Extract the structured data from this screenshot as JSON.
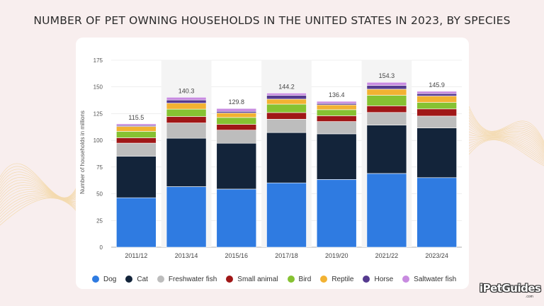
{
  "page": {
    "title": "NUMBER OF PET OWNING HOUSEHOLDS IN THE UNITED STATES IN 2023, BY SPECIES",
    "brand": "iPetGuides",
    "brand_sub": ".com"
  },
  "colors": {
    "Dog": "#2f7be1",
    "Cat": "#13243a",
    "Freshwater fish": "#bdbdbd",
    "Small animal": "#a01717",
    "Bird": "#86c232",
    "Reptile": "#f2b232",
    "Horse": "#553a8f",
    "Saltwater fish": "#c88be0"
  },
  "chart_data": {
    "type": "bar",
    "stacked": true,
    "title": "",
    "xlabel": "",
    "ylabel": "Number of households in millions",
    "ylim": [
      0,
      175
    ],
    "yticks": [
      0,
      25,
      50,
      75,
      100,
      125,
      150,
      175
    ],
    "grid": true,
    "legend_position": "bottom",
    "categories": [
      "2011/12",
      "2013/14",
      "2015/16",
      "2017/18",
      "2019/20",
      "2021/22",
      "2023/24"
    ],
    "totals": [
      "115.5",
      "140.3",
      "129.8",
      "144.2",
      "136.4",
      "154.3",
      "145.9"
    ],
    "series": [
      {
        "name": "Dog",
        "values": [
          46.3,
          56.7,
          54.4,
          60.2,
          63.4,
          69.0,
          65.1
        ]
      },
      {
        "name": "Cat",
        "values": [
          38.9,
          45.3,
          42.9,
          47.1,
          42.7,
          45.3,
          46.5
        ]
      },
      {
        "name": "Freshwater fish",
        "values": [
          12.2,
          14.3,
          12.3,
          12.5,
          11.5,
          11.8,
          11.1
        ]
      },
      {
        "name": "Small animal",
        "values": [
          5.0,
          6.0,
          5.4,
          6.2,
          5.4,
          6.2,
          6.7
        ]
      },
      {
        "name": "Bird",
        "values": [
          6.0,
          6.9,
          6.4,
          7.9,
          5.7,
          9.9,
          6.1
        ]
      },
      {
        "name": "Reptile",
        "values": [
          4.6,
          5.6,
          4.2,
          4.7,
          4.5,
          5.7,
          6.0
        ]
      },
      {
        "name": "Horse",
        "values": [
          1.0,
          3.0,
          1.5,
          3.5,
          1.3,
          3.5,
          2.2
        ]
      },
      {
        "name": "Saltwater fish",
        "values": [
          1.5,
          2.5,
          2.7,
          2.1,
          2.0,
          2.9,
          2.2
        ]
      }
    ]
  }
}
